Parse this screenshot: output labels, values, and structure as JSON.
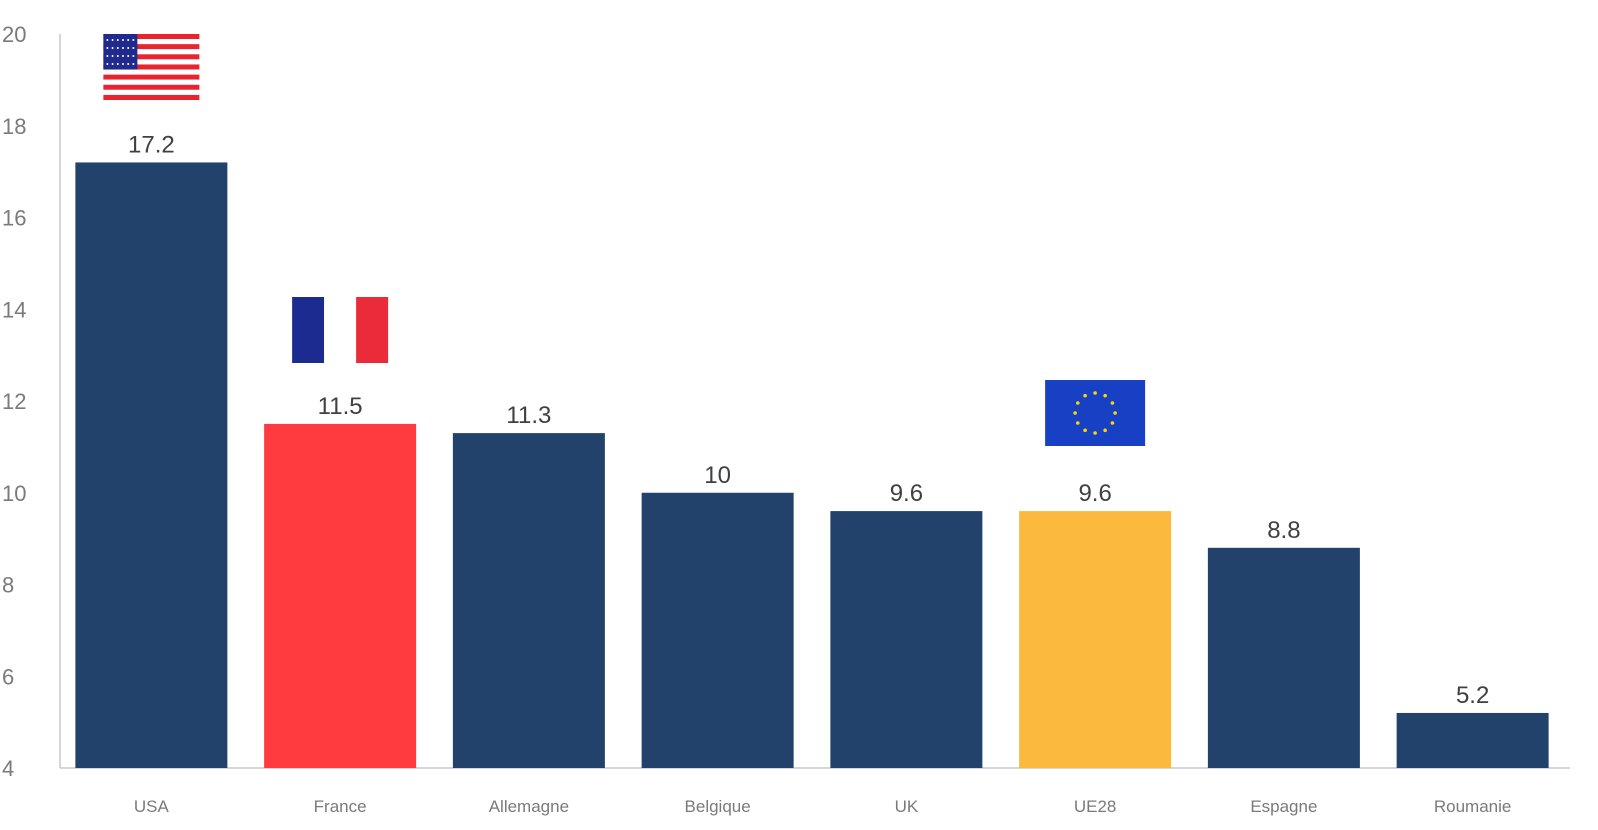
{
  "chart_data": {
    "type": "bar",
    "categories": [
      "USA",
      "France",
      "Allemagne",
      "Belgique",
      "UK",
      "UE28",
      "Espagne",
      "Roumanie"
    ],
    "values": [
      17.2,
      11.5,
      11.3,
      10,
      9.6,
      9.6,
      8.8,
      5.2
    ],
    "value_labels": [
      "17.2",
      "11.5",
      "11.3",
      "10",
      "9.6",
      "9.6",
      "8.8",
      "5.2"
    ],
    "ylim": [
      4,
      20
    ],
    "yticks": [
      4,
      6,
      8,
      10,
      12,
      14,
      16,
      18,
      20
    ],
    "bar_colors": [
      "#22416b",
      "#ff3b3f",
      "#22416b",
      "#22416b",
      "#22416b",
      "#fbb93d",
      "#22416b",
      "#22416b"
    ],
    "grid": false,
    "flags": [
      {
        "category": "USA",
        "icon": "us-flag-icon"
      },
      {
        "category": "France",
        "icon": "france-flag-icon"
      },
      {
        "category": "UE28",
        "icon": "eu-flag-icon"
      }
    ],
    "colors": {
      "us_blue": "#1f2a8c",
      "us_red": "#e8242f",
      "fr_blue": "#1c2b8f",
      "fr_red": "#ea2b3a",
      "eu_blue": "#1740c4",
      "eu_star": "#ffd400",
      "axis": "#c8c8c8"
    }
  }
}
